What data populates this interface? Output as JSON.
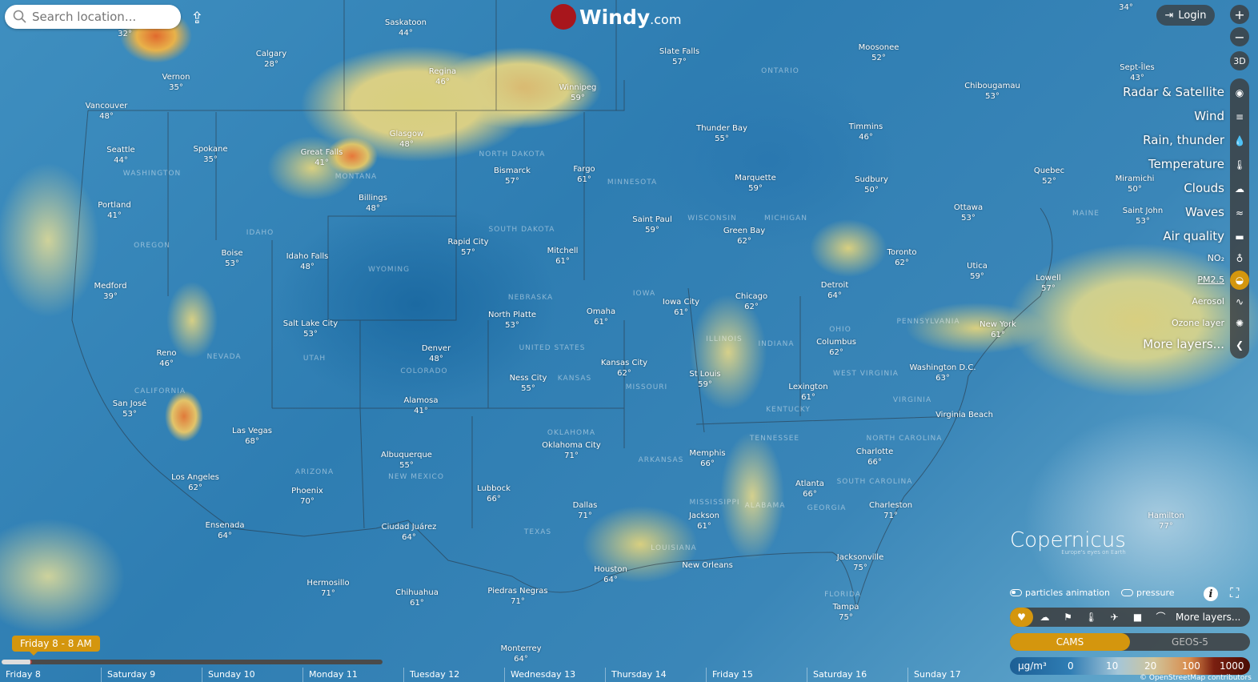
{
  "search": {
    "placeholder": "Search location..."
  },
  "logo": {
    "name": "Windy",
    "suffix": ".com"
  },
  "login_label": "Login",
  "zoom": {
    "in": "+",
    "out": "−",
    "three_d": "3D"
  },
  "menu": {
    "items": [
      {
        "label": "Radar & Satellite",
        "icon": "globe-icon"
      },
      {
        "label": "Wind",
        "icon": "wind-icon"
      },
      {
        "label": "Rain, thunder",
        "icon": "droplet-icon"
      },
      {
        "label": "Temperature",
        "icon": "thermometer-icon"
      },
      {
        "label": "Clouds",
        "icon": "cloud-icon"
      },
      {
        "label": "Waves",
        "icon": "waves-icon"
      },
      {
        "label": "Air quality",
        "icon": "car-icon"
      },
      {
        "label": "NO₂",
        "icon": "gas-icon"
      },
      {
        "label": "PM2.5",
        "icon": "pm-icon",
        "active": true
      },
      {
        "label": "Aerosol",
        "icon": "aerosol-icon"
      },
      {
        "label": "Ozone layer",
        "icon": "ozone-icon"
      },
      {
        "label": "More layers...",
        "icon": "chevron-left-icon"
      }
    ]
  },
  "toggles": {
    "particles": "particles animation",
    "pressure": "pressure"
  },
  "layerbar": {
    "icons": [
      "heart-icon",
      "weather-icon",
      "flag-icon",
      "thermometer-icon",
      "plane-icon",
      "camera-icon",
      "radar-icon"
    ],
    "more": "More layers..."
  },
  "models": {
    "cams": "CAMS",
    "geos": "GEOS-5"
  },
  "legend": {
    "unit": "μg/m³",
    "ticks": [
      "0",
      "10",
      "20",
      "100",
      "1000"
    ]
  },
  "credit": "© OpenStreetMap contributors",
  "copernicus": {
    "name": "opernicus",
    "tagline": "Europe's eyes on Earth"
  },
  "timeline": {
    "current": "Friday 8 - 8 AM",
    "progress": 0.08,
    "days": [
      "Friday 8",
      "Saturday 9",
      "Sunday 10",
      "Monday 11",
      "Tuesday 12",
      "Wednesday 13",
      "Thursday 14",
      "Friday 15",
      "Saturday 16",
      "Sunday 17"
    ]
  },
  "colors": {
    "accent": "#d4960e",
    "brand": "#a8161c"
  },
  "cities": [
    {
      "name": "",
      "temp": "32°"
    },
    {
      "name": "Vancouver",
      "temp": "48°"
    },
    {
      "name": "Vernon",
      "temp": "35°"
    },
    {
      "name": "Calgary",
      "temp": "28°"
    },
    {
      "name": "Saskatoon",
      "temp": "44°"
    },
    {
      "name": "Regina",
      "temp": "46°"
    },
    {
      "name": "Winnipeg",
      "temp": "59°"
    },
    {
      "name": "Slate Falls",
      "temp": "57°"
    },
    {
      "name": "Moosonee",
      "temp": "52°"
    },
    {
      "name": "Chibougamau",
      "temp": "53°"
    },
    {
      "name": "Sept-Îles",
      "temp": "43°"
    },
    {
      "name": "Seattle",
      "temp": "44°"
    },
    {
      "name": "Spokane",
      "temp": "35°"
    },
    {
      "name": "Great Falls",
      "temp": "41°"
    },
    {
      "name": "Glasgow",
      "temp": "48°"
    },
    {
      "name": "Bismarck",
      "temp": "57°"
    },
    {
      "name": "Fargo",
      "temp": "61°"
    },
    {
      "name": "Thunder Bay",
      "temp": "55°"
    },
    {
      "name": "Timmins",
      "temp": "46°"
    },
    {
      "name": "Quebec",
      "temp": "52°"
    },
    {
      "name": "Portland",
      "temp": "41°"
    },
    {
      "name": "Billings",
      "temp": "48°"
    },
    {
      "name": "Marquette",
      "temp": "59°"
    },
    {
      "name": "Sudbury",
      "temp": "50°"
    },
    {
      "name": "Ottawa",
      "temp": "53°"
    },
    {
      "name": "Saint John",
      "temp": "53°"
    },
    {
      "name": "Saint Paul",
      "temp": "59°"
    },
    {
      "name": "Green Bay",
      "temp": "62°"
    },
    {
      "name": "Rapid City",
      "temp": "57°"
    },
    {
      "name": "Toronto",
      "temp": "62°"
    },
    {
      "name": "Boise",
      "temp": "53°"
    },
    {
      "name": "Idaho Falls",
      "temp": "48°"
    },
    {
      "name": "Mitchell",
      "temp": "61°"
    },
    {
      "name": "Utica",
      "temp": "59°"
    },
    {
      "name": "Lowell",
      "temp": "57°"
    },
    {
      "name": "Medford",
      "temp": "39°"
    },
    {
      "name": "Detroit",
      "temp": "64°"
    },
    {
      "name": "Chicago",
      "temp": "62°"
    },
    {
      "name": "Iowa City",
      "temp": "61°"
    },
    {
      "name": "Omaha",
      "temp": "61°"
    },
    {
      "name": "North Platte",
      "temp": "53°"
    },
    {
      "name": "Salt Lake City",
      "temp": "53°"
    },
    {
      "name": "New York",
      "temp": "61°"
    },
    {
      "name": "Columbus",
      "temp": "62°"
    },
    {
      "name": "Denver",
      "temp": "48°"
    },
    {
      "name": "Reno",
      "temp": "46°"
    },
    {
      "name": "Kansas City",
      "temp": "62°"
    },
    {
      "name": "Washington D.C.",
      "temp": "63°"
    },
    {
      "name": "St Louis",
      "temp": "59°"
    },
    {
      "name": "Ness City",
      "temp": "55°"
    },
    {
      "name": "Lexington",
      "temp": "61°"
    },
    {
      "name": "San José",
      "temp": "53°"
    },
    {
      "name": "Alamosa",
      "temp": "41°"
    },
    {
      "name": "Virginia Beach",
      "temp": ""
    },
    {
      "name": "Las Vegas",
      "temp": "68°"
    },
    {
      "name": "Oklahoma City",
      "temp": "71°"
    },
    {
      "name": "Memphis",
      "temp": "66°"
    },
    {
      "name": "Charlotte",
      "temp": "66°"
    },
    {
      "name": "Albuquerque",
      "temp": "55°"
    },
    {
      "name": "Los Angeles",
      "temp": "62°"
    },
    {
      "name": "Atlanta",
      "temp": "66°"
    },
    {
      "name": "Lubbock",
      "temp": "66°"
    },
    {
      "name": "Phoenix",
      "temp": "70°"
    },
    {
      "name": "Dallas",
      "temp": "71°"
    },
    {
      "name": "Charleston",
      "temp": "71°"
    },
    {
      "name": "Jackson",
      "temp": "61°"
    },
    {
      "name": "Hamilton",
      "temp": "77°"
    },
    {
      "name": "Ensenada",
      "temp": "64°"
    },
    {
      "name": "Ciudad Juárez",
      "temp": "64°"
    },
    {
      "name": "Jacksonville",
      "temp": "75°"
    },
    {
      "name": "Houston",
      "temp": "64°"
    },
    {
      "name": "New Orleans",
      "temp": ""
    },
    {
      "name": "Hermosillo",
      "temp": "71°"
    },
    {
      "name": "Chihuahua",
      "temp": "61°"
    },
    {
      "name": "Piedras Negras",
      "temp": "71°"
    },
    {
      "name": "Tampa",
      "temp": "75°"
    },
    {
      "name": "Monterrey",
      "temp": "64°"
    },
    {
      "name": "Miramichi",
      "temp": "50°"
    },
    {
      "name": "",
      "temp": "34°"
    }
  ],
  "regions": [
    "ONTARIO",
    "MONTANA",
    "WASHINGTON",
    "OREGON",
    "IDAHO",
    "WYOMING",
    "NORTH DAKOTA",
    "SOUTH DAKOTA",
    "MINNESOTA",
    "WISCONSIN",
    "MICHIGAN",
    "NEBRASKA",
    "IOWA",
    "UNITED STATES",
    "COLORADO",
    "UTAH",
    "NEVADA",
    "CALIFORNIA",
    "KANSAS",
    "MISSOURI",
    "ILLINOIS",
    "INDIANA",
    "OHIO",
    "PENNSYLVANIA",
    "WEST VIRGINIA",
    "VIRGINIA",
    "KENTUCKY",
    "TENNESSEE",
    "NORTH CAROLINA",
    "SOUTH CAROLINA",
    "GEORGIA",
    "ALABAMA",
    "MISSISSIPPI",
    "ARKANSAS",
    "OKLAHOMA",
    "TEXAS",
    "NEW MEXICO",
    "ARIZONA",
    "LOUISIANA",
    "FLORIDA",
    "MAINE"
  ]
}
